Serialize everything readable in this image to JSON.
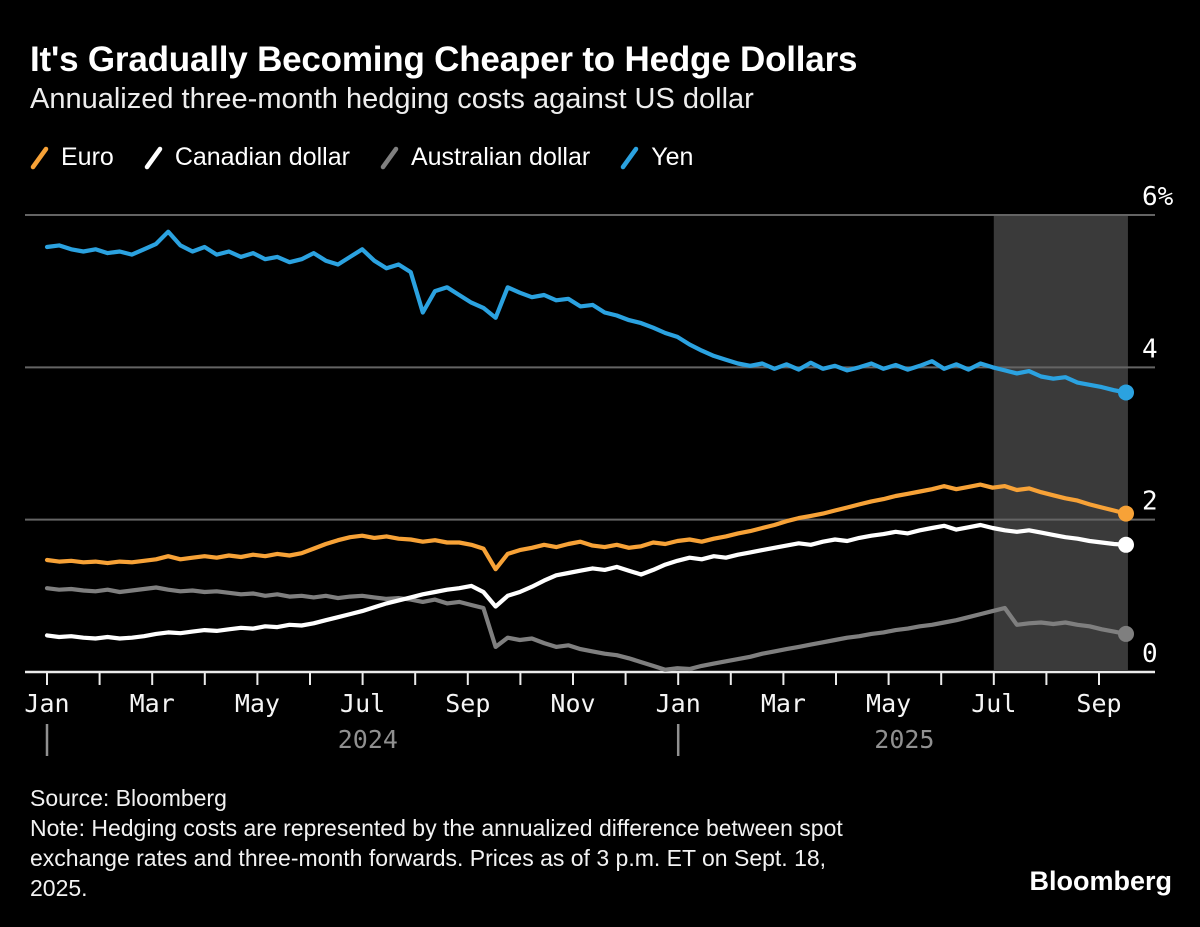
{
  "header": {
    "title": "It's Gradually Becoming Cheaper to Hedge Dollars",
    "subtitle": "Annualized three-month hedging costs against US dollar"
  },
  "footer": {
    "source": "Source: Bloomberg",
    "note_lines": [
      "Note: Hedging costs are represented by the annualized difference between spot",
      "exchange rates and three-month forwards. Prices as of 3 p.m. ET on Sept. 18,",
      "2025."
    ],
    "brand": "Bloomberg"
  },
  "colors": {
    "background": "#000000",
    "grid": "#646464",
    "axis": "#ebebeb",
    "shade": "#3a3a3a",
    "tick_label": "#f5f5f5",
    "year_label": "#909090"
  },
  "chart_data": {
    "type": "line",
    "title": "It's Gradually Becoming Cheaper to Hedge Dollars",
    "subtitle": "Annualized three-month hedging costs against US dollar",
    "unit": "%",
    "sampling": "weekly",
    "x_start": "Jan 2024",
    "x_end": "Sep 18, 2025",
    "ylim": [
      0,
      6
    ],
    "grid": "horizontal",
    "legend_position": "top-left",
    "y_axis": {
      "ticks": [
        {
          "value": 6,
          "label": "6%"
        },
        {
          "value": 4,
          "label": "4"
        },
        {
          "value": 2,
          "label": "2"
        },
        {
          "value": 0,
          "label": "0"
        }
      ]
    },
    "x_axis": {
      "tick_labels": [
        "Jan",
        "",
        "Mar",
        "",
        "May",
        "",
        "Jul",
        "",
        "Sep",
        "",
        "Nov",
        "",
        "Jan",
        "",
        "Mar",
        "",
        "May",
        "",
        "Jul",
        "",
        "Sep"
      ],
      "years": [
        {
          "label": "2024",
          "tick_month": 0,
          "center_month": 6.1
        },
        {
          "label": "2025",
          "tick_month": 12,
          "center_month": 16.3
        }
      ]
    },
    "highlight_region": {
      "start_month_index": 18,
      "end_month_index": 20.55,
      "color": "#3a3a3a"
    },
    "series": [
      {
        "name": "Euro",
        "color": "#f7a237",
        "last_value": 2.08,
        "values": [
          1.47,
          1.45,
          1.46,
          1.44,
          1.45,
          1.43,
          1.45,
          1.44,
          1.46,
          1.48,
          1.52,
          1.48,
          1.5,
          1.52,
          1.5,
          1.53,
          1.51,
          1.54,
          1.52,
          1.55,
          1.53,
          1.56,
          1.62,
          1.68,
          1.73,
          1.77,
          1.79,
          1.76,
          1.78,
          1.75,
          1.74,
          1.71,
          1.73,
          1.7,
          1.7,
          1.67,
          1.62,
          1.35,
          1.55,
          1.6,
          1.63,
          1.67,
          1.64,
          1.68,
          1.71,
          1.66,
          1.64,
          1.67,
          1.63,
          1.65,
          1.7,
          1.68,
          1.72,
          1.74,
          1.71,
          1.75,
          1.78,
          1.82,
          1.85,
          1.89,
          1.93,
          1.98,
          2.02,
          2.05,
          2.08,
          2.12,
          2.16,
          2.2,
          2.24,
          2.27,
          2.31,
          2.34,
          2.37,
          2.4,
          2.44,
          2.4,
          2.43,
          2.46,
          2.42,
          2.44,
          2.39,
          2.41,
          2.36,
          2.32,
          2.28,
          2.25,
          2.2,
          2.16,
          2.12,
          2.08
        ]
      },
      {
        "name": "Canadian dollar",
        "color": "#ffffff",
        "last_value": 1.67,
        "values": [
          0.48,
          0.46,
          0.47,
          0.45,
          0.44,
          0.46,
          0.44,
          0.45,
          0.47,
          0.5,
          0.52,
          0.51,
          0.53,
          0.55,
          0.54,
          0.56,
          0.58,
          0.57,
          0.6,
          0.59,
          0.62,
          0.61,
          0.64,
          0.68,
          0.72,
          0.76,
          0.8,
          0.85,
          0.9,
          0.94,
          0.98,
          1.02,
          1.05,
          1.08,
          1.1,
          1.13,
          1.05,
          0.86,
          1.0,
          1.05,
          1.12,
          1.2,
          1.27,
          1.3,
          1.33,
          1.36,
          1.34,
          1.38,
          1.33,
          1.28,
          1.34,
          1.41,
          1.46,
          1.5,
          1.48,
          1.52,
          1.5,
          1.54,
          1.57,
          1.6,
          1.63,
          1.66,
          1.69,
          1.67,
          1.71,
          1.74,
          1.72,
          1.76,
          1.79,
          1.81,
          1.84,
          1.82,
          1.86,
          1.89,
          1.92,
          1.87,
          1.9,
          1.93,
          1.89,
          1.86,
          1.84,
          1.86,
          1.83,
          1.8,
          1.77,
          1.75,
          1.72,
          1.7,
          1.68,
          1.67
        ]
      },
      {
        "name": "Australian dollar",
        "color": "#7f7f7f",
        "last_value": 0.5,
        "values": [
          1.1,
          1.08,
          1.09,
          1.07,
          1.06,
          1.08,
          1.05,
          1.07,
          1.09,
          1.11,
          1.08,
          1.06,
          1.07,
          1.05,
          1.06,
          1.04,
          1.02,
          1.03,
          1.0,
          1.02,
          0.99,
          1.0,
          0.98,
          1.0,
          0.97,
          0.99,
          1.0,
          0.98,
          0.96,
          0.97,
          0.95,
          0.92,
          0.95,
          0.9,
          0.92,
          0.88,
          0.84,
          0.33,
          0.45,
          0.42,
          0.44,
          0.38,
          0.33,
          0.35,
          0.3,
          0.27,
          0.24,
          0.22,
          0.18,
          0.13,
          0.08,
          0.03,
          0.05,
          0.04,
          0.08,
          0.11,
          0.14,
          0.17,
          0.2,
          0.24,
          0.27,
          0.3,
          0.33,
          0.36,
          0.39,
          0.42,
          0.45,
          0.47,
          0.5,
          0.52,
          0.55,
          0.57,
          0.6,
          0.62,
          0.65,
          0.68,
          0.72,
          0.76,
          0.8,
          0.84,
          0.62,
          0.64,
          0.65,
          0.63,
          0.65,
          0.62,
          0.6,
          0.56,
          0.53,
          0.5
        ]
      },
      {
        "name": "Yen",
        "color": "#2ba2e0",
        "last_value": 3.67,
        "values": [
          5.58,
          5.6,
          5.55,
          5.52,
          5.55,
          5.5,
          5.52,
          5.48,
          5.55,
          5.62,
          5.78,
          5.6,
          5.52,
          5.58,
          5.48,
          5.52,
          5.45,
          5.5,
          5.42,
          5.45,
          5.38,
          5.42,
          5.5,
          5.4,
          5.35,
          5.45,
          5.55,
          5.4,
          5.3,
          5.35,
          5.25,
          4.72,
          5.0,
          5.05,
          4.95,
          4.85,
          4.78,
          4.65,
          5.05,
          4.98,
          4.92,
          4.95,
          4.88,
          4.9,
          4.8,
          4.82,
          4.72,
          4.68,
          4.62,
          4.58,
          4.52,
          4.45,
          4.4,
          4.3,
          4.22,
          4.15,
          4.1,
          4.05,
          4.02,
          4.05,
          3.98,
          4.04,
          3.97,
          4.06,
          3.98,
          4.02,
          3.96,
          4.0,
          4.05,
          3.98,
          4.03,
          3.97,
          4.02,
          4.08,
          3.98,
          4.04,
          3.97,
          4.05,
          4.0,
          3.96,
          3.92,
          3.95,
          3.88,
          3.85,
          3.87,
          3.8,
          3.77,
          3.74,
          3.7,
          3.67
        ]
      }
    ]
  }
}
